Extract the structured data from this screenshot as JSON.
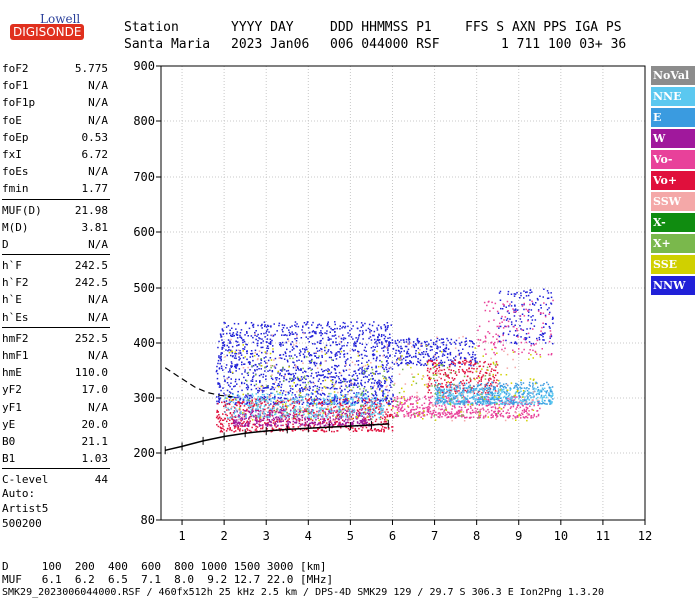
{
  "logo": {
    "top": "Lowell",
    "bottom": "DIGISONDE"
  },
  "header": {
    "row1": [
      "Station",
      "YYYY DAY",
      "DDD HHMMSS P1",
      "FFS S AXN PPS IGA PS"
    ],
    "row2": [
      "Santa Maria",
      "2023 Jan06",
      "006 044000 RSF",
      "1 711 100 03+ 36"
    ]
  },
  "params": [
    {
      "label": "foF2",
      "value": "5.775"
    },
    {
      "label": "foF1",
      "value": "N/A"
    },
    {
      "label": "foF1p",
      "value": "N/A"
    },
    {
      "label": "foE",
      "value": "N/A"
    },
    {
      "label": "foEp",
      "value": "0.53"
    },
    {
      "label": "fxI",
      "value": "6.72"
    },
    {
      "label": "foEs",
      "value": "N/A"
    },
    {
      "label": "fmin",
      "value": "1.77"
    },
    {
      "label": "MUF(D)",
      "value": "21.98"
    },
    {
      "label": "M(D)",
      "value": "3.81"
    },
    {
      "label": "D",
      "value": "N/A"
    },
    {
      "label": "h`F",
      "value": "242.5"
    },
    {
      "label": "h`F2",
      "value": "242.5"
    },
    {
      "label": "h`E",
      "value": "N/A"
    },
    {
      "label": "h`Es",
      "value": "N/A"
    },
    {
      "label": "hmF2",
      "value": "252.5"
    },
    {
      "label": "hmF1",
      "value": "N/A"
    },
    {
      "label": "hmE",
      "value": "110.0"
    },
    {
      "label": "yF2",
      "value": "17.0"
    },
    {
      "label": "yF1",
      "value": "N/A"
    },
    {
      "label": "yE",
      "value": "20.0"
    },
    {
      "label": "B0",
      "value": "21.1"
    },
    {
      "label": "B1",
      "value": "1.03"
    },
    {
      "label": "C-level",
      "value": "44"
    }
  ],
  "auto": {
    "line1": "Auto:",
    "line2": "Artist5",
    "line3": "500200"
  },
  "footer": {
    "d_row": "D     100  200  400  600  800 1000 1500 3000 [km]",
    "muf_row": "MUF   6.1  6.2  6.5  7.1  8.0  9.2 12.7 22.0 [MHz]",
    "info": "SMK29_2023006044000.RSF / 460fx512h 25 kHz 2.5 km / DPS-4D SMK29 129 / 29.7 S 306.3 E Ion2Png 1.3.20"
  },
  "legend": [
    {
      "label": "NoVal",
      "color": "#8c8c8c"
    },
    {
      "label": "NNE",
      "color": "#5bc8f0"
    },
    {
      "label": "E",
      "color": "#3a9be0"
    },
    {
      "label": "W",
      "color": "#a0189c"
    },
    {
      "label": "Vo-",
      "color": "#e8419a"
    },
    {
      "label": "Vo+",
      "color": "#e0103c"
    },
    {
      "label": "SSW",
      "color": "#f4a8a8"
    },
    {
      "label": "X-",
      "color": "#108c10"
    },
    {
      "label": "X+",
      "color": "#7ab84c"
    },
    {
      "label": "SSE",
      "color": "#d0d000"
    },
    {
      "label": "NNW",
      "color": "#2020d8"
    }
  ],
  "chart_data": {
    "type": "scatter",
    "x_ticks": [
      "1",
      "2",
      "3",
      "4",
      "5",
      "6",
      "7",
      "8",
      "9",
      "10",
      "11",
      "12"
    ],
    "y_ticks": [
      "80",
      "200",
      "300",
      "400",
      "500",
      "600",
      "700",
      "800",
      "900"
    ],
    "xlim": [
      0.5,
      12
    ],
    "ylim": [
      80,
      900
    ],
    "grid": true,
    "profile_trace": [
      [
        0.6,
        205
      ],
      [
        1.0,
        212
      ],
      [
        1.5,
        222
      ],
      [
        2.0,
        230
      ],
      [
        2.5,
        236
      ],
      [
        3.0,
        240
      ],
      [
        3.5,
        243
      ],
      [
        4.0,
        245
      ],
      [
        4.5,
        247
      ],
      [
        5.0,
        249
      ],
      [
        5.5,
        251
      ],
      [
        5.9,
        253
      ]
    ],
    "dashed_trace": [
      [
        0.6,
        355
      ],
      [
        1.0,
        335
      ],
      [
        1.3,
        320
      ],
      [
        1.6,
        310
      ],
      [
        1.9,
        305
      ],
      [
        2.2,
        302
      ]
    ],
    "point_clouds": [
      {
        "legend": "NNW",
        "color": "#2020d8",
        "x": [
          1.8,
          6.0
        ],
        "y": [
          290,
          440
        ],
        "n": 1400
      },
      {
        "legend": "NNW",
        "color": "#2020d8",
        "x": [
          6.0,
          8.0
        ],
        "y": [
          360,
          410
        ],
        "n": 260
      },
      {
        "legend": "Vo+",
        "color": "#e0103c",
        "x": [
          1.8,
          6.0
        ],
        "y": [
          240,
          300
        ],
        "n": 700
      },
      {
        "legend": "Vo+",
        "color": "#e0103c",
        "x": [
          6.8,
          8.5
        ],
        "y": [
          310,
          370
        ],
        "n": 260
      },
      {
        "legend": "W",
        "color": "#a0189c",
        "x": [
          2.2,
          5.5
        ],
        "y": [
          250,
          280
        ],
        "n": 400
      },
      {
        "legend": "Vo-",
        "color": "#e8419a",
        "x": [
          6.0,
          9.5
        ],
        "y": [
          265,
          305
        ],
        "n": 500
      },
      {
        "legend": "NNE",
        "color": "#5bc8f0",
        "x": [
          2.0,
          5.8
        ],
        "y": [
          265,
          310
        ],
        "n": 400
      },
      {
        "legend": "NNE",
        "color": "#5bc8f0",
        "x": [
          7.0,
          9.8
        ],
        "y": [
          290,
          320
        ],
        "n": 400
      },
      {
        "legend": "E",
        "color": "#3a9be0",
        "x": [
          7.0,
          9.8
        ],
        "y": [
          290,
          330
        ],
        "n": 300
      },
      {
        "legend": "SSE",
        "color": "#d0d000",
        "x": [
          2.0,
          9.5
        ],
        "y": [
          260,
          400
        ],
        "n": 180
      },
      {
        "legend": "X+",
        "color": "#7ab84c",
        "x": [
          2.5,
          8.5
        ],
        "y": [
          260,
          380
        ],
        "n": 140
      },
      {
        "legend": "SSW",
        "color": "#f4a8a8",
        "x": [
          2.0,
          9.5
        ],
        "y": [
          260,
          420
        ],
        "n": 200
      },
      {
        "legend": "NNW",
        "color": "#2020d8",
        "x": [
          8.5,
          9.8
        ],
        "y": [
          400,
          500
        ],
        "n": 160
      },
      {
        "legend": "Vo-",
        "color": "#e8419a",
        "x": [
          8.0,
          9.8
        ],
        "y": [
          380,
          480
        ],
        "n": 120
      }
    ]
  }
}
